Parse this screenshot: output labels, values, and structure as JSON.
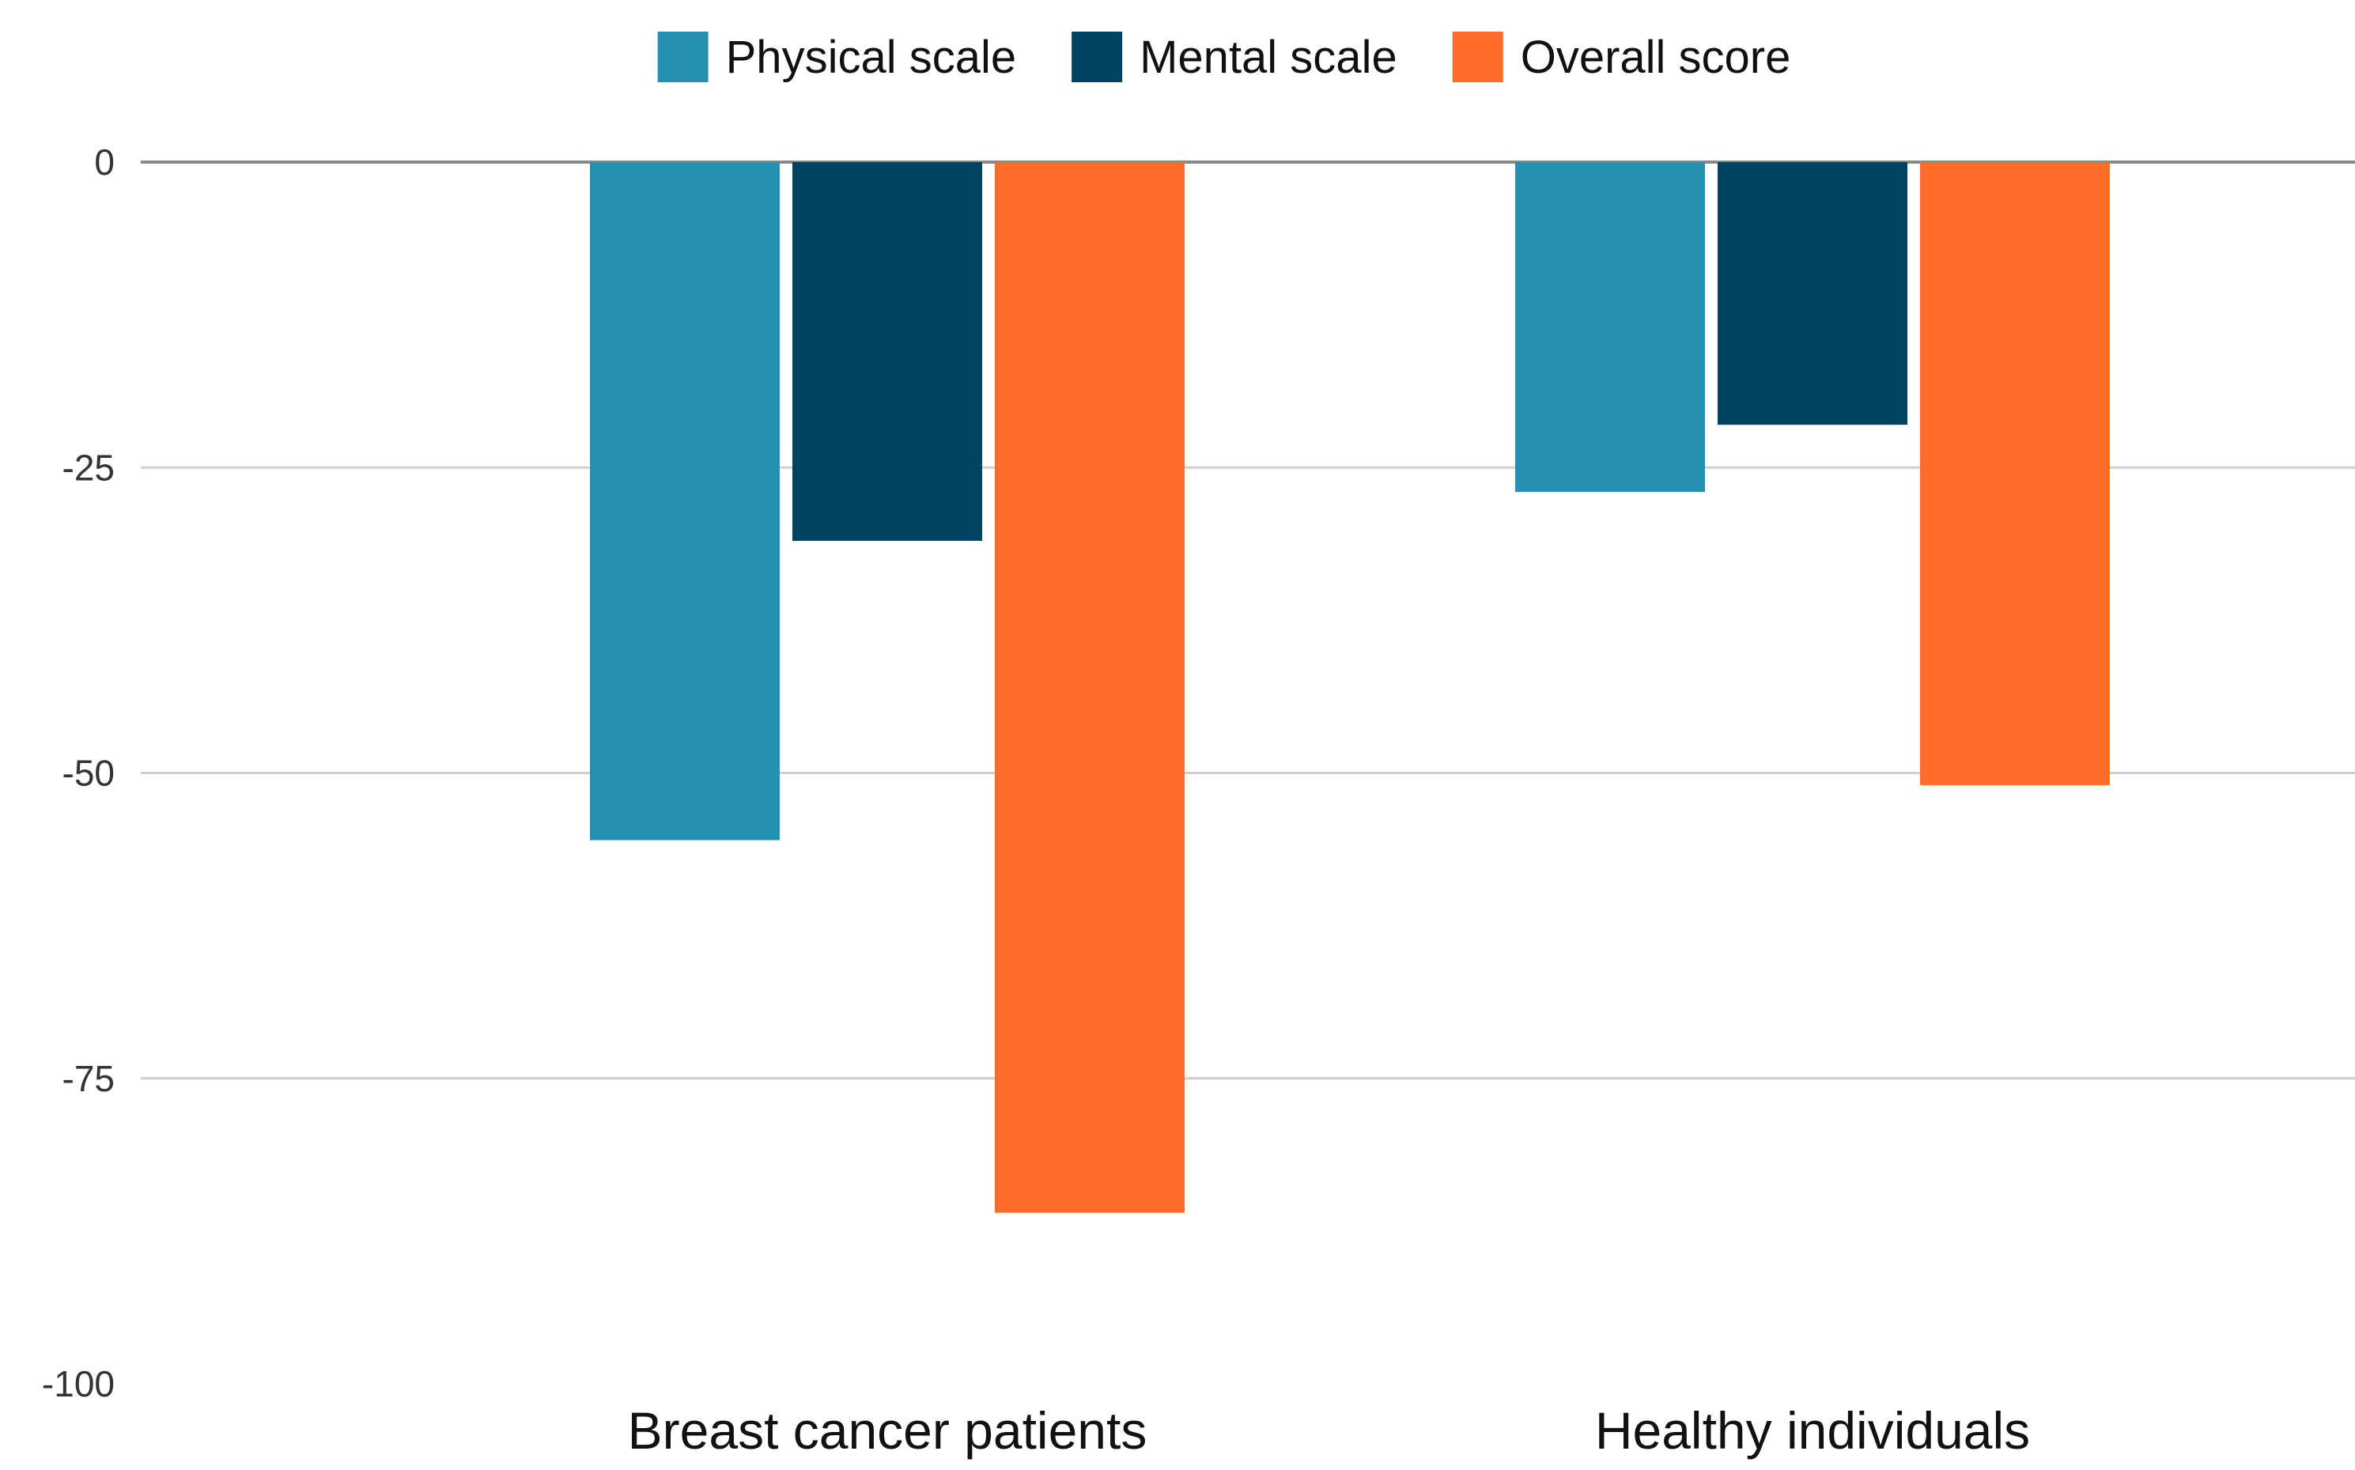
{
  "chart_data": {
    "type": "bar",
    "title": "",
    "xlabel": "",
    "ylabel": "",
    "categories": [
      "Breast cancer patients",
      "Healthy individuals"
    ],
    "series": [
      {
        "name": "Physical scale",
        "color": "#2590b0",
        "values": [
          -55.5,
          -27
        ]
      },
      {
        "name": "Mental scale",
        "color": "#034362",
        "values": [
          -31,
          -21.5
        ]
      },
      {
        "name": "Overall score",
        "color": "#fd6d27",
        "values": [
          -86,
          -51
        ]
      }
    ],
    "ylim": [
      -100,
      0
    ],
    "yticks": [
      {
        "value": 0,
        "label": "0"
      },
      {
        "value": -25,
        "label": "-25"
      },
      {
        "value": -50,
        "label": "-50"
      },
      {
        "value": -75,
        "label": "-75"
      },
      {
        "value": -100,
        "label": "-100"
      }
    ],
    "grid": true,
    "legend": "top-center"
  }
}
